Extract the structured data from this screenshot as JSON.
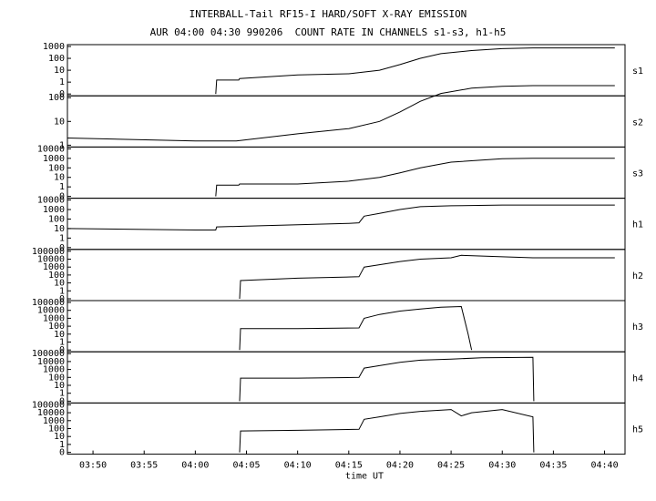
{
  "header": {
    "title": "INTERBALL-Tail RF15-I HARD/SOFT X-RAY EMISSION",
    "subtitle": "AUR 04:00 04:30 990206  COUNT RATE IN CHANNELS s1-s3, h1-h5"
  },
  "chart_data": {
    "type": "line",
    "title": "INTERBALL-Tail RF15-I HARD/SOFT X-RAY EMISSION",
    "subtitle": "AUR 04:00 04:30 990206  COUNT RATE IN CHANNELS s1-s3, h1-h5",
    "xlabel": "time UT",
    "x_ticks": [
      "03:50",
      "03:55",
      "04:00",
      "04:05",
      "04:10",
      "04:15",
      "04:20",
      "04:25",
      "04:30",
      "04:35",
      "04:40"
    ],
    "x_range": [
      "03:47:30",
      "04:42:00"
    ],
    "y_scale": "log",
    "panels": [
      {
        "name": "s1",
        "y_ticks": [
          "0",
          "1",
          "10",
          "100",
          "1000"
        ],
        "series": [
          [
            "04:02:00",
            0
          ],
          [
            "04:02:05",
            1.5
          ],
          [
            "04:04:15",
            1.5
          ],
          [
            "04:04:20",
            2
          ],
          [
            "04:10",
            4
          ],
          [
            "04:15",
            5
          ],
          [
            "04:18",
            10
          ],
          [
            "04:20",
            30
          ],
          [
            "04:22",
            100
          ],
          [
            "04:24",
            250
          ],
          [
            "04:27",
            450
          ],
          [
            "04:30",
            650
          ],
          [
            "04:33",
            750
          ],
          [
            "04:41",
            750
          ]
        ]
      },
      {
        "name": "s2",
        "y_ticks": [
          "1",
          "10",
          "100"
        ],
        "series": [
          [
            "03:47:30",
            2
          ],
          [
            "04:00",
            1.5
          ],
          [
            "04:04:00",
            1.5
          ],
          [
            "04:10",
            3
          ],
          [
            "04:15",
            5
          ],
          [
            "04:18",
            10
          ],
          [
            "04:20",
            25
          ],
          [
            "04:22",
            70
          ],
          [
            "04:24",
            150
          ],
          [
            "04:27",
            250
          ],
          [
            "04:30",
            300
          ],
          [
            "04:33",
            320
          ],
          [
            "04:41",
            320
          ]
        ]
      },
      {
        "name": "s3",
        "y_ticks": [
          "0",
          "1",
          "10",
          "100",
          "1000",
          "10000"
        ],
        "series": [
          [
            "04:02:00",
            0
          ],
          [
            "04:02:05",
            1.5
          ],
          [
            "04:04:15",
            1.5
          ],
          [
            "04:04:20",
            2
          ],
          [
            "04:10",
            2
          ],
          [
            "04:15",
            4
          ],
          [
            "04:18",
            10
          ],
          [
            "04:20",
            30
          ],
          [
            "04:22",
            100
          ],
          [
            "04:25",
            400
          ],
          [
            "04:30",
            900
          ],
          [
            "04:33",
            1000
          ],
          [
            "04:41",
            1000
          ]
        ]
      },
      {
        "name": "h1",
        "y_ticks": [
          "0",
          "1",
          "10",
          "100",
          "1000",
          "10000"
        ],
        "series": [
          [
            "03:47:30",
            10
          ],
          [
            "04:00",
            7
          ],
          [
            "04:02",
            7
          ],
          [
            "04:02:05",
            15
          ],
          [
            "04:05",
            18
          ],
          [
            "04:10",
            25
          ],
          [
            "04:15",
            35
          ],
          [
            "04:16",
            40
          ],
          [
            "04:16:30",
            200
          ],
          [
            "04:18",
            400
          ],
          [
            "04:20",
            1000
          ],
          [
            "04:22",
            2000
          ],
          [
            "04:25",
            2500
          ],
          [
            "04:30",
            3000
          ],
          [
            "04:41",
            3000
          ]
        ]
      },
      {
        "name": "h2",
        "y_ticks": [
          "0",
          "1",
          "10",
          "100",
          "1000",
          "10000",
          "100000"
        ],
        "series": [
          [
            "04:04:20",
            0
          ],
          [
            "04:04:25",
            20
          ],
          [
            "04:10",
            40
          ],
          [
            "04:16",
            60
          ],
          [
            "04:16:30",
            1000
          ],
          [
            "04:18",
            2000
          ],
          [
            "04:20",
            5000
          ],
          [
            "04:22",
            10000
          ],
          [
            "04:25",
            15000
          ],
          [
            "04:26",
            30000
          ],
          [
            "04:30",
            20000
          ],
          [
            "04:33",
            15000
          ],
          [
            "04:41",
            15000
          ]
        ]
      },
      {
        "name": "h3",
        "y_ticks": [
          "0",
          "1",
          "10",
          "100",
          "1000",
          "10000",
          "100000"
        ],
        "series": [
          [
            "04:04:20",
            0
          ],
          [
            "04:04:25",
            50
          ],
          [
            "04:10",
            50
          ],
          [
            "04:16",
            60
          ],
          [
            "04:16:30",
            1000
          ],
          [
            "04:18",
            3000
          ],
          [
            "04:20",
            8000
          ],
          [
            "04:22",
            15000
          ],
          [
            "04:24",
            25000
          ],
          [
            "04:26",
            30000
          ],
          [
            "04:26:40",
            10
          ],
          [
            "04:27:00",
            0
          ]
        ]
      },
      {
        "name": "h4",
        "y_ticks": [
          "0",
          "1",
          "10",
          "100",
          "1000",
          "10000",
          "100000"
        ],
        "series": [
          [
            "04:04:20",
            0
          ],
          [
            "04:04:25",
            80
          ],
          [
            "04:10",
            80
          ],
          [
            "04:16",
            100
          ],
          [
            "04:16:30",
            1500
          ],
          [
            "04:18",
            3000
          ],
          [
            "04:20",
            8000
          ],
          [
            "04:22",
            15000
          ],
          [
            "04:25",
            20000
          ],
          [
            "04:28",
            30000
          ],
          [
            "04:33",
            35000
          ],
          [
            "04:33:05",
            0
          ]
        ]
      },
      {
        "name": "h5",
        "y_ticks": [
          "0",
          "1",
          "10",
          "100",
          "1000",
          "10000",
          "100000"
        ],
        "series": [
          [
            "04:04:20",
            0
          ],
          [
            "04:04:25",
            50
          ],
          [
            "04:10",
            60
          ],
          [
            "04:16",
            80
          ],
          [
            "04:16:30",
            1500
          ],
          [
            "04:18",
            3000
          ],
          [
            "04:20",
            8000
          ],
          [
            "04:22",
            15000
          ],
          [
            "04:25",
            25000
          ],
          [
            "04:26",
            4000
          ],
          [
            "04:27",
            10000
          ],
          [
            "04:30",
            25000
          ],
          [
            "04:33",
            3000
          ],
          [
            "04:33:05",
            0
          ]
        ]
      }
    ]
  }
}
